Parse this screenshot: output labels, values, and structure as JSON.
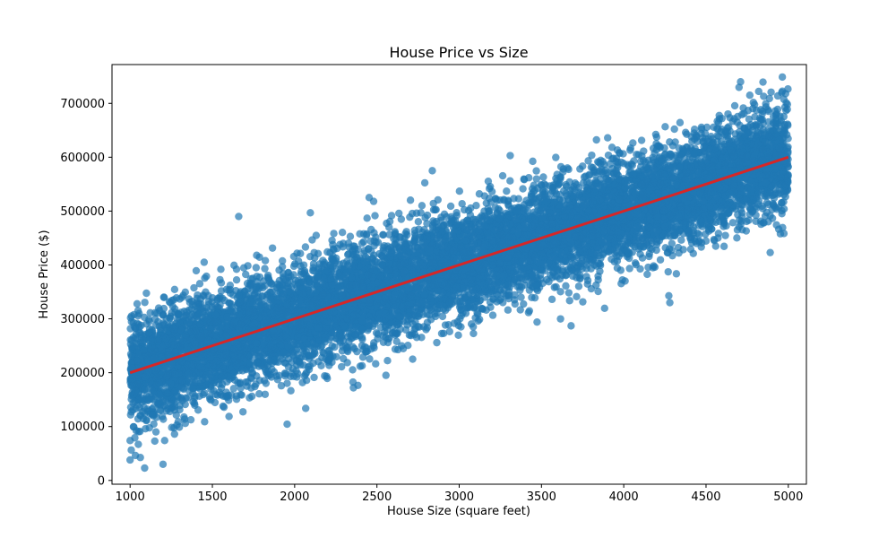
{
  "chart_data": {
    "type": "scatter",
    "title": "House Price vs Size",
    "xlabel": "House Size (square feet)",
    "ylabel": "House Price ($)",
    "xlim": [
      890,
      5110
    ],
    "ylim": [
      -7000,
      772000
    ],
    "xticks": [
      1000,
      1500,
      2000,
      2500,
      3000,
      3500,
      4000,
      4500,
      5000
    ],
    "yticks": [
      0,
      100000,
      200000,
      300000,
      400000,
      500000,
      600000,
      700000
    ],
    "grid": false,
    "legend": "none",
    "series": [
      {
        "kind": "points",
        "color": "#1f77b4",
        "opacity": 0.7,
        "count": 10000,
        "x_range": [
          1000,
          5000
        ],
        "trend": {
          "slope": 100,
          "intercept": 100000
        },
        "residual_sd": 50000,
        "outliers": [
          [
            1000,
            38000
          ],
          [
            1200,
            30000
          ],
          [
            1000,
            74000
          ],
          [
            1050,
            67000
          ],
          [
            1150,
            73000
          ],
          [
            1210,
            74000
          ],
          [
            1270,
            86000
          ],
          [
            1660,
            490000
          ],
          [
            1450,
            405000
          ],
          [
            4710,
            740000
          ],
          [
            4960,
            720000
          ],
          [
            4280,
            330000
          ],
          [
            3680,
            287000
          ],
          [
            4890,
            423000
          ],
          [
            2480,
            518000
          ],
          [
            3310,
            603000
          ]
        ]
      },
      {
        "kind": "regression-line",
        "color": "#d62728",
        "x": [
          1000,
          5000
        ],
        "y": [
          200000,
          600000
        ]
      }
    ]
  }
}
